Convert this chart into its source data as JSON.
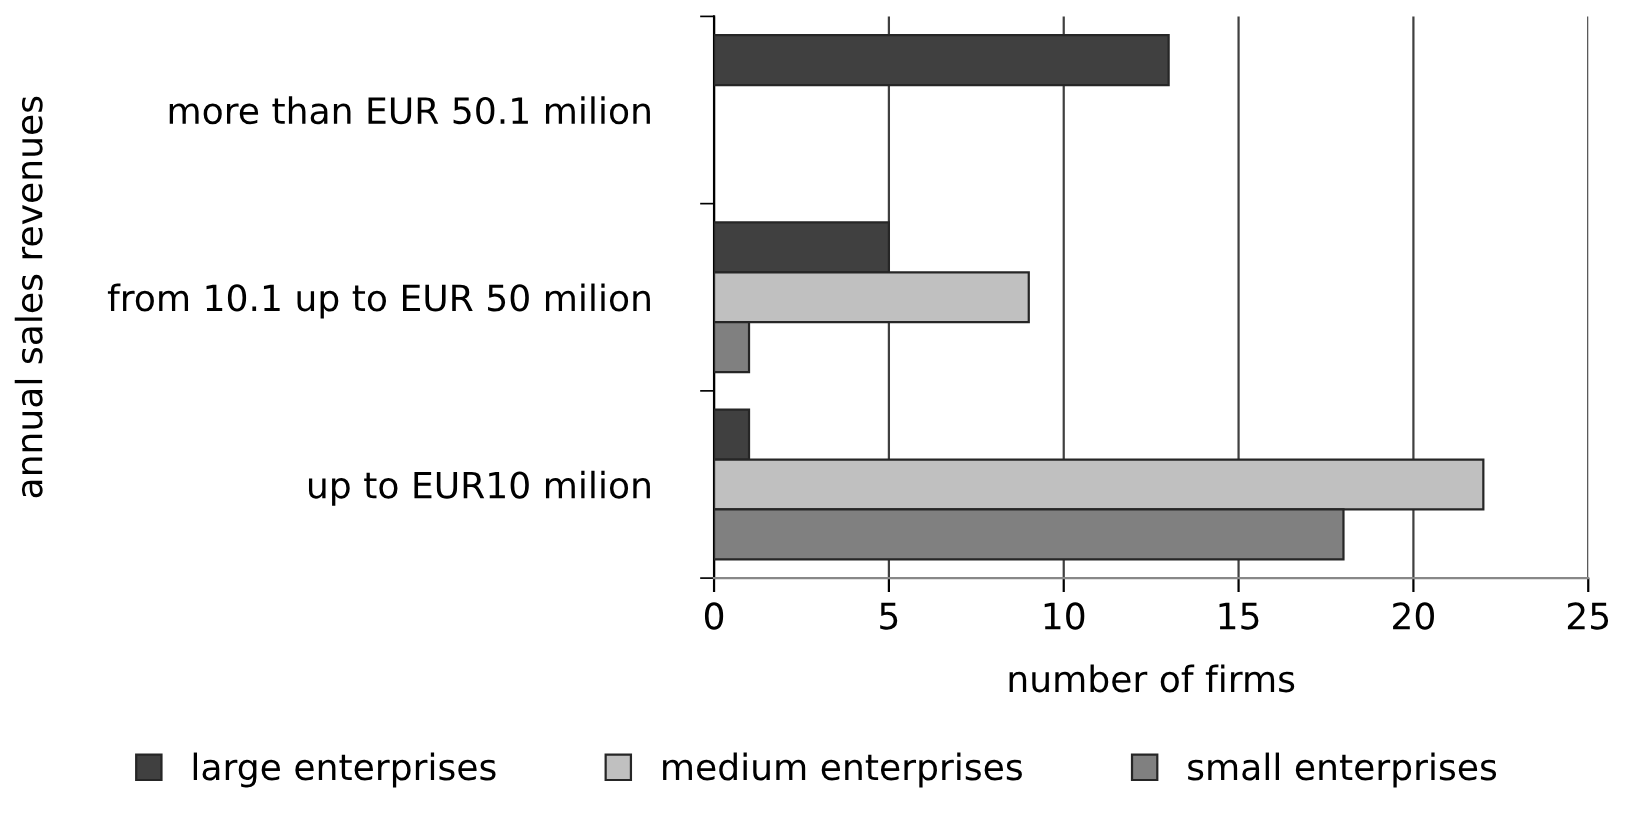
{
  "chart_data": {
    "type": "bar",
    "orientation": "horizontal",
    "xlabel": "number of firms",
    "ylabel": "annual sales revenues",
    "categories": [
      "more than EUR 50.1 milion",
      "from 10.1 up to EUR 50 milion",
      "up to EUR10 milion"
    ],
    "series": [
      {
        "name": "large enterprises",
        "color": "#404040",
        "values": [
          13,
          5,
          1
        ]
      },
      {
        "name": "medium enterprises",
        "color": "#c0c0c0",
        "values": [
          null,
          9,
          22
        ]
      },
      {
        "name": "small enterprises",
        "color": "#808080",
        "values": [
          null,
          1,
          18
        ]
      }
    ],
    "xlim": [
      0,
      25
    ],
    "xticks": [
      0,
      5,
      10,
      15,
      20,
      25
    ],
    "grid": "x",
    "legend": "bottom"
  }
}
